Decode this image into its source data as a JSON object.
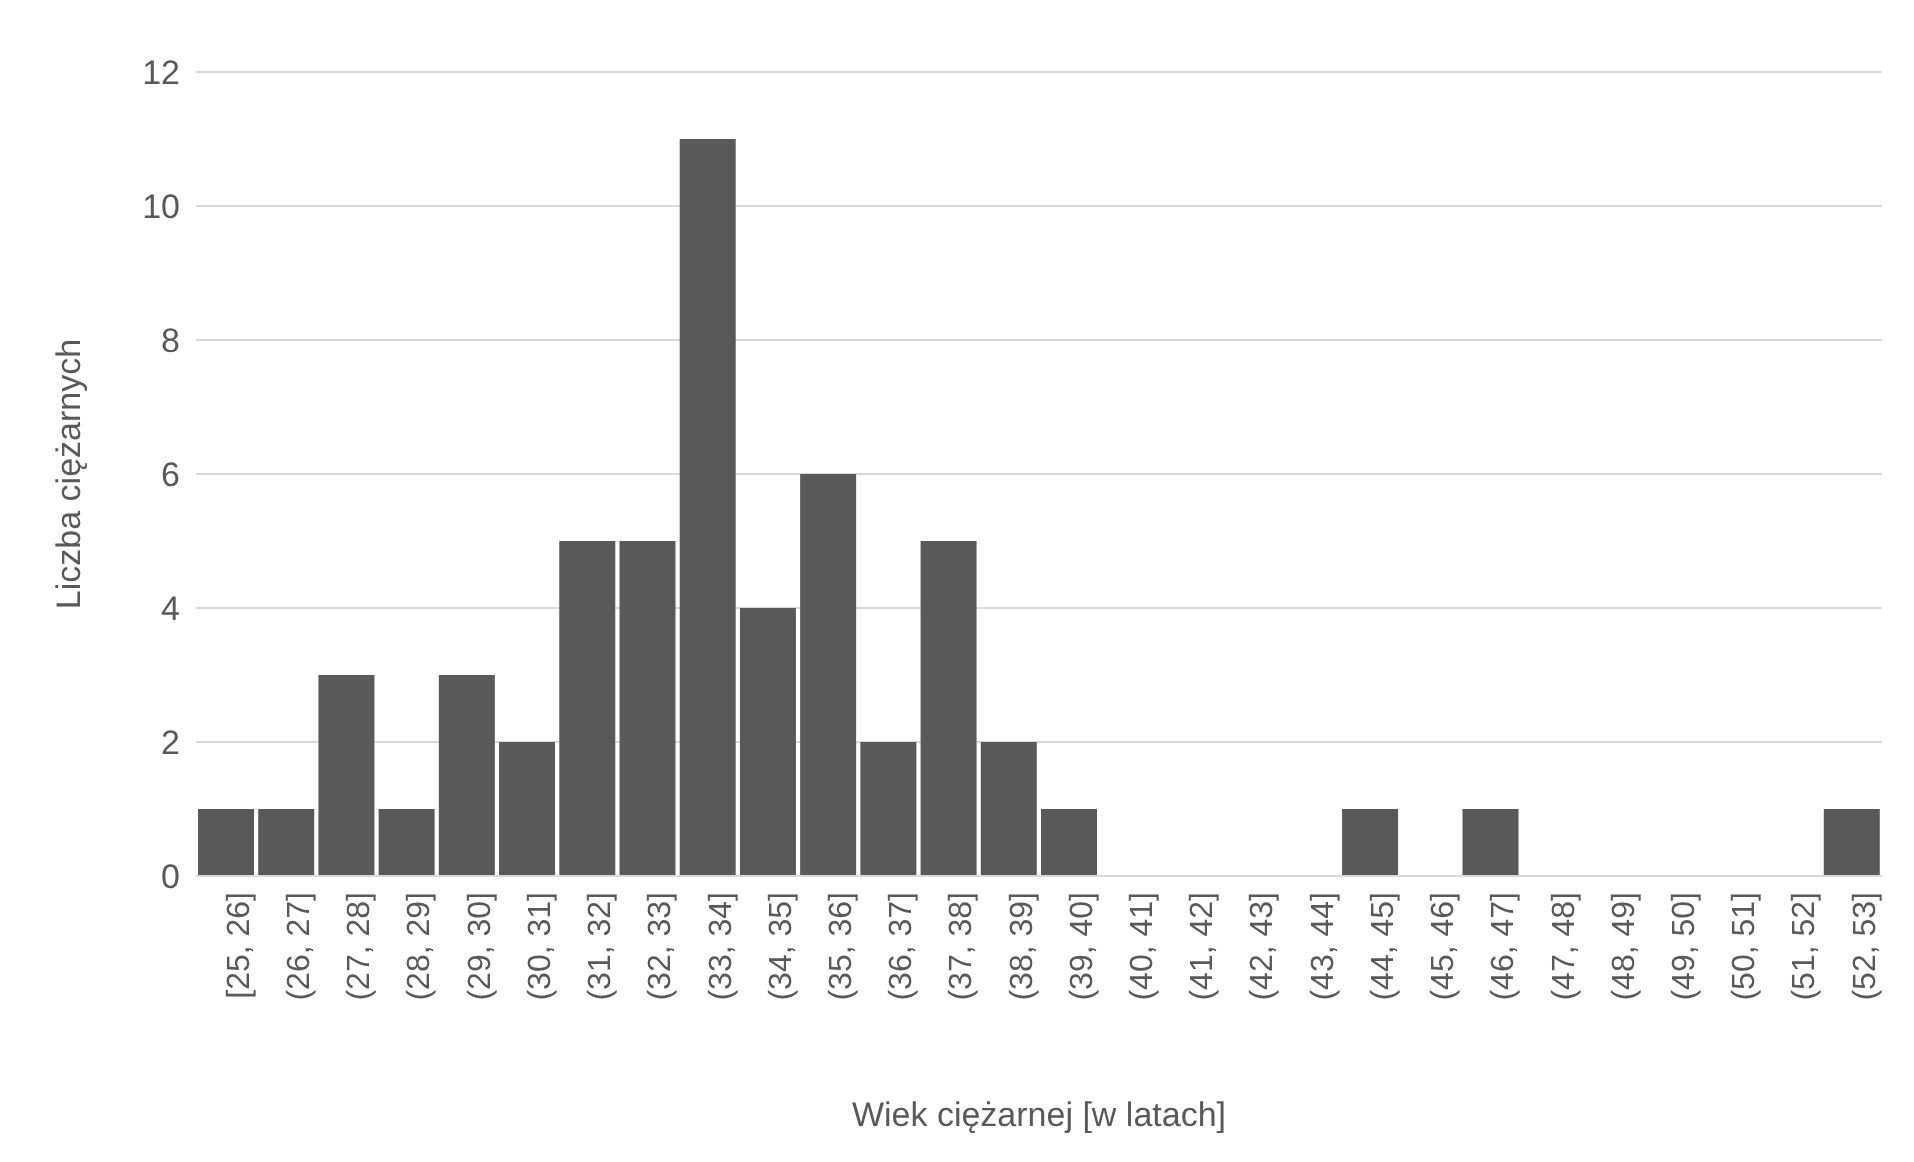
{
  "chart_data": {
    "type": "bar",
    "xlabel": "Wiek ciężarnej [w latach]",
    "ylabel": "Liczba ciężarnych",
    "categories": [
      "[25, 26]",
      "(26, 27]",
      "(27, 28]",
      "(28, 29]",
      "(29, 30]",
      "(30, 31]",
      "(31, 32]",
      "(32, 33]",
      "(33, 34]",
      "(34, 35]",
      "(35, 36]",
      "(36, 37]",
      "(37, 38]",
      "(38, 39]",
      "(39, 40]",
      "(40, 41]",
      "(41, 42]",
      "(42, 43]",
      "(43, 44]",
      "(44, 45]",
      "(45, 46]",
      "(46, 47]",
      "(47, 48]",
      "(48, 49]",
      "(49, 50]",
      "(50, 51]",
      "(51, 52]",
      "(52, 53]"
    ],
    "values": [
      1,
      1,
      3,
      1,
      3,
      2,
      5,
      5,
      11,
      4,
      6,
      2,
      5,
      2,
      1,
      0,
      0,
      0,
      0,
      1,
      0,
      1,
      0,
      0,
      0,
      0,
      0,
      1
    ],
    "color": "#595959",
    "ylim": [
      0,
      12
    ],
    "yticks": [
      0,
      2,
      4,
      6,
      8,
      10,
      12
    ],
    "grid": "y"
  }
}
